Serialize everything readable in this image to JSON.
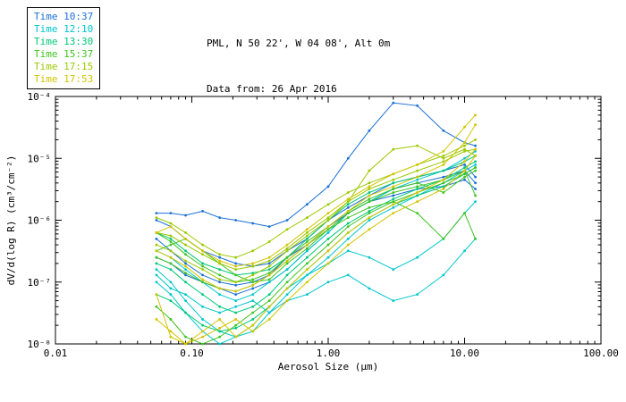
{
  "header": {
    "title": "PML, N 50 22', W 04 08', Alt 0m",
    "subtitle": "Data from: 26 Apr 2016"
  },
  "legend": {
    "items": [
      {
        "label": "Time 10:37",
        "color": "#1a6fd6"
      },
      {
        "label": "Time 12:10",
        "color": "#00c6cc"
      },
      {
        "label": "Time 13:30",
        "color": "#00c878"
      },
      {
        "label": "Time 15:37",
        "color": "#3fc420"
      },
      {
        "label": "Time 17:15",
        "color": "#9cc800"
      },
      {
        "label": "Time 17:53",
        "color": "#d2c400"
      }
    ]
  },
  "chart_data": {
    "type": "line",
    "xscale": "log",
    "yscale": "log",
    "xlim": [
      0.01,
      100
    ],
    "ylim": [
      1e-08,
      0.0001
    ],
    "xlabel": "Aerosol Size (μm)",
    "ylabel": "dV/d(log R) (cm³/cm⁻²)",
    "x_tick_labels": [
      "0.01",
      "0.10",
      "1.00",
      "10.00",
      "100.00"
    ],
    "y_tick_labels": [
      "10⁻⁸",
      "10⁻⁷",
      "10⁻⁶",
      "10⁻⁵",
      "10⁻⁴"
    ],
    "x": [
      0.055,
      0.07,
      0.09,
      0.12,
      0.16,
      0.21,
      0.28,
      0.37,
      0.5,
      0.7,
      1.0,
      1.4,
      2.0,
      3.0,
      4.5,
      7.0,
      10.0,
      12.0
    ],
    "series": [
      {
        "time": "10:37",
        "color": "#1a6fd6",
        "y": [
          1.3e-06,
          1.3e-06,
          1.2e-06,
          1.4e-06,
          1.1e-06,
          1e-06,
          8.9e-07,
          7.9e-07,
          1e-06,
          1.8e-06,
          3.5e-06,
          1e-05,
          2.8e-05,
          7.9e-05,
          7.1e-05,
          2.8e-05,
          1.8e-05,
          1.6e-05
        ]
      },
      {
        "time": "10:37",
        "color": "#1a6fd6",
        "y": [
          1e-06,
          7.9e-07,
          5e-07,
          3.2e-07,
          2.5e-07,
          2e-07,
          1.8e-07,
          2e-07,
          3.2e-07,
          5e-07,
          1e-06,
          1.6e-06,
          2.5e-06,
          4e-06,
          5e-06,
          6.3e-06,
          7.9e-06,
          5e-06
        ]
      },
      {
        "time": "10:37",
        "color": "#1a6fd6",
        "y": [
          2.5e-07,
          2e-07,
          1.3e-07,
          1e-07,
          7.9e-08,
          6.3e-08,
          7.9e-08,
          1e-07,
          1.6e-07,
          3.2e-07,
          6.3e-07,
          1.3e-06,
          2e-06,
          3.2e-06,
          4e-06,
          5e-06,
          6.3e-06,
          4e-06
        ]
      },
      {
        "time": "10:37",
        "color": "#1a6fd6",
        "y": [
          5e-07,
          3.2e-07,
          2e-07,
          1.3e-07,
          1e-07,
          8.9e-08,
          1e-07,
          1.3e-07,
          2.5e-07,
          4e-07,
          7.9e-07,
          1.3e-06,
          2e-06,
          2.5e-06,
          3.2e-06,
          3.5e-06,
          4.5e-06,
          3.2e-06
        ]
      },
      {
        "time": "12:10",
        "color": "#00c6cc",
        "y": [
          1.6e-07,
          1e-07,
          5e-08,
          2.5e-08,
          1.6e-08,
          1.3e-08,
          1.6e-08,
          3.2e-08,
          6.3e-08,
          1.3e-07,
          2.5e-07,
          5e-07,
          1e-06,
          1.6e-06,
          2.5e-06,
          4e-06,
          6.3e-06,
          7.9e-06
        ]
      },
      {
        "time": "12:10",
        "color": "#00c6cc",
        "y": [
          1e-07,
          6.3e-08,
          3.2e-08,
          1.6e-08,
          1e-08,
          1.3e-08,
          2e-08,
          4e-08,
          7.9e-08,
          1.3e-07,
          2e-07,
          3.2e-07,
          2.5e-07,
          1.6e-07,
          2.5e-07,
          5e-07,
          1.3e-06,
          2e-06
        ]
      },
      {
        "time": "12:10",
        "color": "#00c6cc",
        "y": [
          1.3e-07,
          7.9e-08,
          6.3e-08,
          4e-08,
          3.2e-08,
          4e-08,
          5e-08,
          3.2e-08,
          5e-08,
          6.3e-08,
          1e-07,
          1.3e-07,
          7.9e-08,
          5e-08,
          6.3e-08,
          1.3e-07,
          3.2e-07,
          5e-07
        ]
      },
      {
        "time": "12:10",
        "color": "#00c6cc",
        "y": [
          3.2e-07,
          2.5e-07,
          1.6e-07,
          1e-07,
          6.3e-08,
          5e-08,
          6.3e-08,
          1e-07,
          1.6e-07,
          3.2e-07,
          6.3e-07,
          1.3e-06,
          2e-06,
          3.2e-06,
          4.5e-06,
          6.3e-06,
          1e-05,
          1.3e-05
        ]
      },
      {
        "time": "13:30",
        "color": "#00c878",
        "y": [
          6.3e-07,
          5e-07,
          3.2e-07,
          2e-07,
          1.6e-07,
          1.3e-07,
          1.4e-07,
          1.6e-07,
          2.5e-07,
          5e-07,
          1e-06,
          1.8e-06,
          2.8e-06,
          4e-06,
          5e-06,
          6.3e-06,
          8.9e-06,
          1.1e-05
        ]
      },
      {
        "time": "13:30",
        "color": "#00c878",
        "y": [
          2e-07,
          1.6e-07,
          1e-07,
          6.3e-08,
          4e-08,
          3.2e-08,
          4e-08,
          6.3e-08,
          1.3e-07,
          2.5e-07,
          5e-07,
          8.9e-07,
          1.4e-06,
          2.2e-06,
          3.2e-06,
          4.5e-06,
          7.1e-06,
          8.9e-06
        ]
      },
      {
        "time": "13:30",
        "color": "#00c878",
        "y": [
          6.3e-08,
          5e-08,
          3.2e-08,
          2e-08,
          1.6e-08,
          1.8e-08,
          2.5e-08,
          4e-08,
          7.9e-08,
          1.6e-07,
          3.2e-07,
          6.3e-07,
          1.1e-06,
          1.8e-06,
          2.5e-06,
          3.5e-06,
          5.6e-06,
          7.1e-06
        ]
      },
      {
        "time": "15:37",
        "color": "#3fc420",
        "y": [
          6.3e-07,
          4.5e-07,
          2.8e-07,
          1.8e-07,
          1.3e-07,
          1e-07,
          1.1e-07,
          1.4e-07,
          2.5e-07,
          4.5e-07,
          7.9e-07,
          1.4e-06,
          2.2e-06,
          3.2e-06,
          4e-06,
          2.8e-06,
          5e-06,
          6.3e-06
        ]
      },
      {
        "time": "15:37",
        "color": "#3fc420",
        "y": [
          3.2e-07,
          4e-07,
          5e-07,
          3.2e-07,
          2e-07,
          1.3e-07,
          1e-07,
          1.1e-07,
          2e-07,
          3.5e-07,
          7.1e-07,
          1.3e-06,
          2e-06,
          2.8e-06,
          3.5e-06,
          4.5e-06,
          6.3e-06,
          2.5e-06
        ]
      },
      {
        "time": "15:37",
        "color": "#3fc420",
        "y": [
          4e-08,
          2.5e-08,
          1.3e-08,
          1e-08,
          1.3e-08,
          2e-08,
          3.2e-08,
          5e-08,
          1e-07,
          2e-07,
          4e-07,
          7.9e-07,
          1.3e-06,
          2e-06,
          2.8e-06,
          4e-06,
          5.6e-06,
          7.1e-06
        ]
      },
      {
        "time": "15:37",
        "color": "#3fc420",
        "y": [
          2.5e-07,
          2e-07,
          1.4e-07,
          1e-07,
          7.9e-08,
          7.1e-08,
          8.9e-08,
          1.3e-07,
          2.2e-07,
          4e-07,
          7.1e-07,
          1.1e-06,
          1.6e-06,
          2e-06,
          1.3e-06,
          5e-07,
          1.3e-06,
          5e-07
        ]
      },
      {
        "time": "17:15",
        "color": "#9cc800",
        "y": [
          6.3e-07,
          5.6e-07,
          4e-07,
          2.8e-07,
          2e-07,
          1.6e-07,
          1.8e-07,
          2.2e-07,
          3.5e-07,
          6.3e-07,
          1.1e-06,
          2e-06,
          3.2e-06,
          4.5e-06,
          6.3e-06,
          8.9e-06,
          1.3e-05,
          1.4e-05
        ]
      },
      {
        "time": "17:15",
        "color": "#9cc800",
        "y": [
          4e-07,
          3.2e-07,
          2.2e-07,
          1.6e-07,
          1.1e-07,
          1e-07,
          1.3e-07,
          1.8e-07,
          3.2e-07,
          5.6e-07,
          1e-06,
          2e-06,
          6.3e-06,
          1.4e-05,
          1.6e-05,
          1e-05,
          1.4e-05,
          1.1e-05
        ]
      },
      {
        "time": "17:15",
        "color": "#9cc800",
        "y": [
          1.1e-06,
          8.9e-07,
          6.3e-07,
          4e-07,
          2.8e-07,
          2.5e-07,
          3.2e-07,
          4.5e-07,
          7.1e-07,
          1.1e-06,
          1.8e-06,
          2.8e-06,
          4e-06,
          5.6e-06,
          7.9e-06,
          1.1e-05,
          1.6e-05,
          2e-05
        ]
      },
      {
        "time": "17:53",
        "color": "#d2c400",
        "y": [
          6.3e-07,
          7.9e-07,
          5e-07,
          3.2e-07,
          2.2e-07,
          1.8e-07,
          2e-07,
          2.5e-07,
          4e-07,
          7.1e-07,
          1.3e-06,
          2.2e-06,
          3.5e-06,
          5.6e-06,
          7.9e-06,
          1.3e-05,
          3.2e-05,
          5e-05
        ]
      },
      {
        "time": "17:53",
        "color": "#d2c400",
        "y": [
          3.2e-07,
          2.5e-07,
          1.8e-07,
          1.1e-07,
          7.9e-08,
          7.1e-08,
          8.9e-08,
          1.3e-07,
          2.2e-07,
          4e-07,
          7.9e-07,
          1.4e-06,
          2.5e-06,
          3.5e-06,
          5e-06,
          7.9e-06,
          1.8e-05,
          3.5e-05
        ]
      },
      {
        "time": "17:53",
        "color": "#d2c400",
        "y": [
          2.5e-08,
          1.6e-08,
          1e-08,
          1.3e-08,
          1.8e-08,
          2.5e-08,
          1.6e-08,
          2.5e-08,
          5e-08,
          1e-07,
          2e-07,
          4e-07,
          7.1e-07,
          1.3e-06,
          2e-06,
          3.2e-06,
          6.3e-06,
          1.1e-05
        ]
      },
      {
        "time": "17:53",
        "color": "#d2c400",
        "y": [
          6.3e-08,
          1.3e-08,
          1e-08,
          1.6e-08,
          2.5e-08,
          1.3e-08,
          2e-08,
          4e-08,
          7.9e-08,
          1.6e-07,
          3.2e-07,
          6.3e-07,
          1.1e-06,
          1.8e-06,
          2.8e-06,
          4.5e-06,
          8.9e-06,
          1.4e-05
        ]
      }
    ]
  }
}
